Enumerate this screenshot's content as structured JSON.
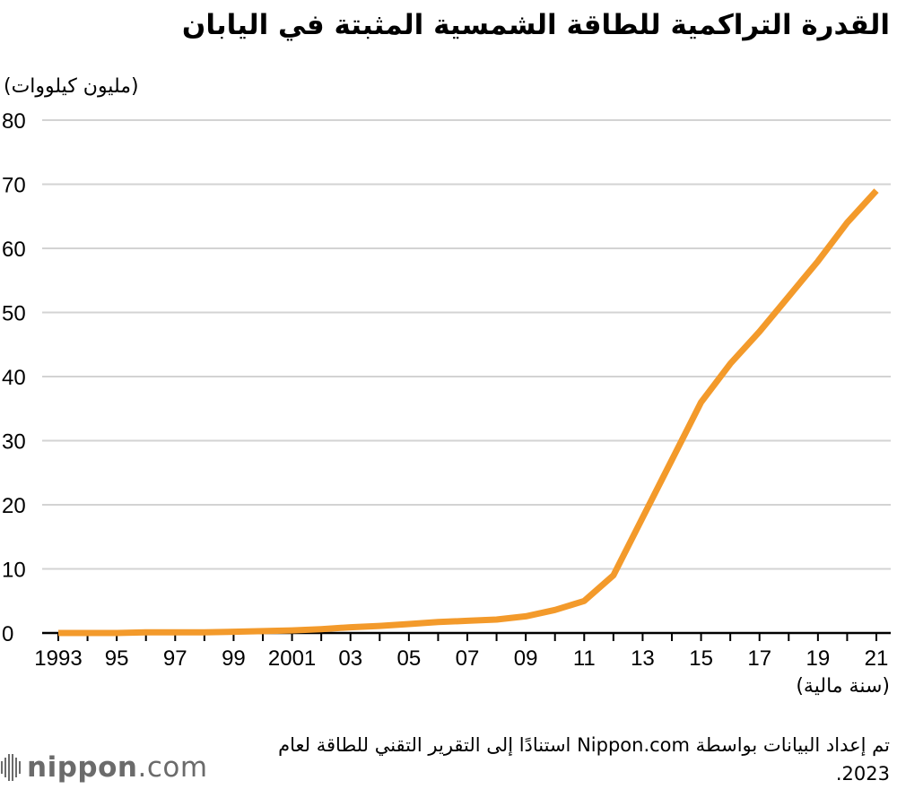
{
  "title": "القدرة التراكمية للطاقة الشمسية المثبتة في اليابان",
  "source_note": "تم إعداد البيانات بواسطة Nippon.com استنادًا إلى التقرير التقني للطاقة لعام 2023.",
  "logo": {
    "name_bold": "nippon",
    "dot": ".",
    "name_light": "com"
  },
  "colors": {
    "line": "#f39a2b",
    "grid": "#d3d3d3",
    "axis": "#000000",
    "text": "#000000"
  },
  "chart_data": {
    "type": "line",
    "title": "القدرة التراكمية للطاقة الشمسية المثبتة في اليابان",
    "ylabel": "(مليون كيلووات)",
    "xlabel": "(سنة مالية)",
    "ylim": [
      0,
      80
    ],
    "yticks": [
      "0",
      "10",
      "20",
      "30",
      "40",
      "50",
      "60",
      "70",
      "80"
    ],
    "xticks": [
      {
        "x": 1993,
        "label": "1993"
      },
      {
        "x": 1995,
        "label": "95"
      },
      {
        "x": 1997,
        "label": "97"
      },
      {
        "x": 1999,
        "label": "99"
      },
      {
        "x": 2001,
        "label": "2001"
      },
      {
        "x": 2003,
        "label": "03"
      },
      {
        "x": 2005,
        "label": "05"
      },
      {
        "x": 2007,
        "label": "07"
      },
      {
        "x": 2009,
        "label": "09"
      },
      {
        "x": 2011,
        "label": "11"
      },
      {
        "x": 2013,
        "label": "13"
      },
      {
        "x": 2015,
        "label": "15"
      },
      {
        "x": 2017,
        "label": "17"
      },
      {
        "x": 2019,
        "label": "19"
      },
      {
        "x": 2021,
        "label": "21"
      }
    ],
    "grid": true,
    "series": [
      {
        "x": [
          1993,
          1994,
          1995,
          1996,
          1997,
          1998,
          1999,
          2000,
          2001,
          2002,
          2003,
          2004,
          2005,
          2006,
          2007,
          2008,
          2009,
          2010,
          2011,
          2012,
          2013,
          2014,
          2015,
          2016,
          2017,
          2018,
          2019,
          2020,
          2021
        ],
        "values": [
          0.0,
          0.0,
          0.0,
          0.1,
          0.1,
          0.1,
          0.2,
          0.3,
          0.4,
          0.6,
          0.9,
          1.1,
          1.4,
          1.7,
          1.9,
          2.1,
          2.6,
          3.6,
          5.0,
          9.0,
          18.0,
          27.0,
          36.0,
          42.0,
          47.0,
          52.5,
          58.0,
          64.0,
          69.0
        ]
      }
    ]
  }
}
